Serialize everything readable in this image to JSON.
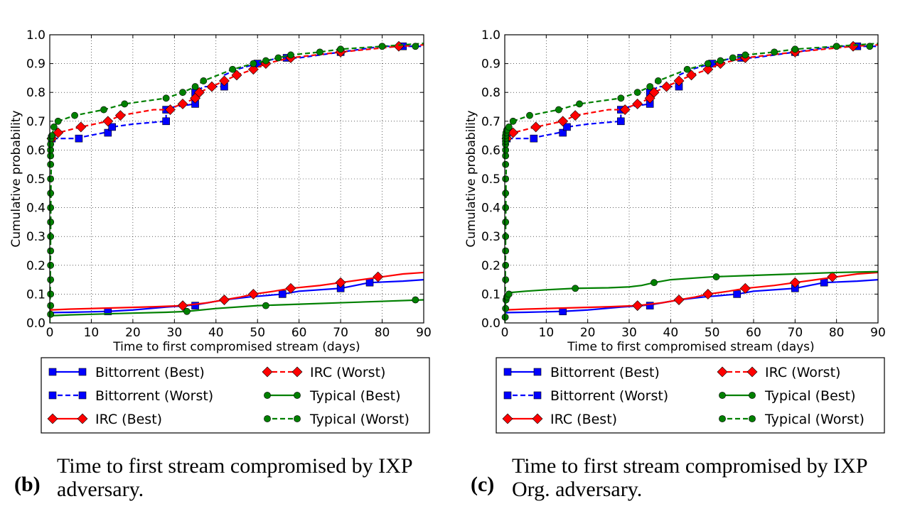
{
  "chart_data": [
    {
      "type": "line",
      "panel": "(b)",
      "caption": "Time to first stream compromised by IXP adversary.",
      "xlabel": "Time to first compromised stream (days)",
      "ylabel": "Cumulative probability",
      "xlim": [
        0,
        90
      ],
      "ylim": [
        0,
        1
      ],
      "xticks": [
        "0",
        "10",
        "20",
        "30",
        "40",
        "50",
        "60",
        "70",
        "80",
        "90"
      ],
      "yticks": [
        "0.0",
        "0.1",
        "0.2",
        "0.3",
        "0.4",
        "0.5",
        "0.6",
        "0.7",
        "0.8",
        "0.9",
        "1.0"
      ],
      "grid": true,
      "series": [
        {
          "name": "Bittorrent (Best)",
          "color": "#0000ff",
          "dash": false,
          "marker": "square",
          "x": [
            0,
            1,
            5,
            14,
            20,
            28,
            33,
            36,
            42,
            48,
            56,
            60,
            70,
            77,
            85,
            90
          ],
          "y": [
            0.035,
            0.036,
            0.037,
            0.04,
            0.045,
            0.055,
            0.06,
            0.065,
            0.08,
            0.09,
            0.1,
            0.11,
            0.12,
            0.14,
            0.145,
            0.15
          ],
          "markers_x": [
            14,
            35,
            56,
            70,
            77
          ],
          "markers_y": [
            0.04,
            0.06,
            0.1,
            0.12,
            0.14
          ]
        },
        {
          "name": "Bittorrent (Worst)",
          "color": "#0000ff",
          "dash": true,
          "marker": "square",
          "x": [
            0,
            0.3,
            1,
            6,
            13,
            15,
            20,
            28,
            28,
            30,
            35,
            35,
            37,
            42,
            42,
            45,
            50,
            55,
            60,
            70,
            80,
            90
          ],
          "y": [
            0.62,
            0.64,
            0.64,
            0.64,
            0.66,
            0.68,
            0.69,
            0.7,
            0.74,
            0.75,
            0.76,
            0.8,
            0.82,
            0.82,
            0.86,
            0.88,
            0.9,
            0.92,
            0.92,
            0.94,
            0.96,
            0.96
          ],
          "markers_x": [
            0.5,
            7,
            14,
            15,
            28,
            28,
            35,
            35,
            42,
            50,
            57,
            70,
            85
          ],
          "markers_y": [
            0.64,
            0.64,
            0.66,
            0.68,
            0.7,
            0.74,
            0.76,
            0.8,
            0.82,
            0.9,
            0.92,
            0.94,
            0.96
          ]
        },
        {
          "name": "IRC (Best)",
          "color": "#ff0000",
          "dash": false,
          "marker": "diamond",
          "x": [
            0,
            5,
            15,
            25,
            32,
            38,
            42,
            46,
            49,
            54,
            58,
            65,
            70,
            75,
            80,
            85,
            90
          ],
          "y": [
            0.045,
            0.048,
            0.052,
            0.056,
            0.06,
            0.07,
            0.08,
            0.09,
            0.1,
            0.11,
            0.12,
            0.13,
            0.14,
            0.15,
            0.16,
            0.17,
            0.175
          ],
          "markers_x": [
            32,
            42,
            49,
            58,
            70,
            79
          ],
          "markers_y": [
            0.06,
            0.08,
            0.1,
            0.12,
            0.14,
            0.16
          ]
        },
        {
          "name": "IRC (Worst)",
          "color": "#ff0000",
          "dash": true,
          "marker": "diamond",
          "x": [
            0,
            0.5,
            2,
            7.5,
            14,
            17,
            25,
            28,
            32,
            35,
            36,
            39,
            42,
            45,
            49,
            52,
            58,
            70,
            84,
            90
          ],
          "y": [
            0.63,
            0.65,
            0.66,
            0.68,
            0.7,
            0.72,
            0.74,
            0.74,
            0.76,
            0.78,
            0.8,
            0.82,
            0.84,
            0.86,
            0.88,
            0.9,
            0.92,
            0.94,
            0.96,
            0.965
          ],
          "markers_x": [
            0.5,
            2,
            7.5,
            14,
            17,
            29,
            32,
            35,
            36,
            39,
            42,
            45,
            49,
            52,
            58,
            70,
            84
          ],
          "markers_y": [
            0.64,
            0.66,
            0.68,
            0.7,
            0.72,
            0.74,
            0.76,
            0.78,
            0.8,
            0.82,
            0.84,
            0.86,
            0.88,
            0.9,
            0.92,
            0.94,
            0.96
          ]
        },
        {
          "name": "Typical (Best)",
          "color": "#008000",
          "dash": false,
          "marker": "circle",
          "x": [
            0,
            5,
            10,
            20,
            28,
            33,
            40,
            50,
            60,
            70,
            80,
            90
          ],
          "y": [
            0.025,
            0.028,
            0.03,
            0.034,
            0.037,
            0.04,
            0.05,
            0.06,
            0.065,
            0.07,
            0.075,
            0.08
          ],
          "markers_x": [
            33,
            52,
            88
          ],
          "markers_y": [
            0.04,
            0.06,
            0.08
          ]
        },
        {
          "name": "Typical (Worst)",
          "color": "#008000",
          "dash": true,
          "marker": "circle",
          "x": [
            0,
            0.1,
            0.2,
            0.3,
            0.5,
            1,
            2,
            6,
            13,
            18,
            28,
            32,
            35,
            37,
            44,
            49,
            52,
            55,
            58,
            65,
            70,
            80,
            90
          ],
          "y": [
            0.0,
            0.1,
            0.3,
            0.5,
            0.65,
            0.68,
            0.7,
            0.72,
            0.74,
            0.76,
            0.78,
            0.8,
            0.82,
            0.84,
            0.88,
            0.9,
            0.91,
            0.92,
            0.93,
            0.94,
            0.95,
            0.96,
            0.97
          ],
          "markers_x": [
            0.2,
            0.2,
            0.2,
            0.2,
            0.2,
            0.2,
            0.2,
            0.2,
            0.2,
            0.2,
            0.2,
            0.2,
            0.2,
            0.2,
            0.2,
            0.3,
            0.5,
            1,
            2,
            6,
            13,
            18,
            28,
            32,
            35,
            37,
            44,
            49,
            52,
            55,
            58,
            65,
            70,
            80,
            88
          ],
          "markers_y": [
            0.03,
            0.06,
            0.1,
            0.15,
            0.2,
            0.25,
            0.3,
            0.35,
            0.4,
            0.45,
            0.5,
            0.55,
            0.58,
            0.6,
            0.62,
            0.64,
            0.65,
            0.68,
            0.7,
            0.72,
            0.74,
            0.76,
            0.78,
            0.8,
            0.82,
            0.84,
            0.88,
            0.9,
            0.91,
            0.92,
            0.93,
            0.94,
            0.95,
            0.96,
            0.96
          ]
        }
      ]
    },
    {
      "type": "line",
      "panel": "(c)",
      "caption": "Time to first stream compromised by IXP Org. adversary.",
      "xlabel": "Time to first compromised stream (days)",
      "ylabel": "Cumulative probability",
      "xlim": [
        0,
        90
      ],
      "ylim": [
        0,
        1
      ],
      "xticks": [
        "0",
        "10",
        "20",
        "30",
        "40",
        "50",
        "60",
        "70",
        "80",
        "90"
      ],
      "yticks": [
        "0.0",
        "0.1",
        "0.2",
        "0.3",
        "0.4",
        "0.5",
        "0.6",
        "0.7",
        "0.8",
        "0.9",
        "1.0"
      ],
      "grid": true,
      "series": [
        {
          "name": "Bittorrent (Best)",
          "color": "#0000ff",
          "dash": false,
          "marker": "square",
          "x": [
            0,
            1,
            5,
            14,
            20,
            28,
            33,
            36,
            42,
            48,
            56,
            60,
            70,
            77,
            85,
            90
          ],
          "y": [
            0.035,
            0.036,
            0.037,
            0.04,
            0.045,
            0.055,
            0.06,
            0.065,
            0.08,
            0.09,
            0.1,
            0.11,
            0.12,
            0.14,
            0.145,
            0.15
          ],
          "markers_x": [
            14,
            35,
            56,
            70,
            77
          ],
          "markers_y": [
            0.04,
            0.06,
            0.1,
            0.12,
            0.14
          ]
        },
        {
          "name": "Bittorrent (Worst)",
          "color": "#0000ff",
          "dash": true,
          "marker": "square",
          "x": [
            0,
            0.3,
            1,
            6,
            13,
            15,
            20,
            28,
            28,
            30,
            35,
            35,
            37,
            42,
            42,
            45,
            50,
            55,
            60,
            70,
            80,
            90
          ],
          "y": [
            0.62,
            0.64,
            0.64,
            0.64,
            0.66,
            0.68,
            0.69,
            0.7,
            0.74,
            0.75,
            0.76,
            0.8,
            0.82,
            0.82,
            0.86,
            0.88,
            0.9,
            0.92,
            0.92,
            0.94,
            0.96,
            0.96
          ],
          "markers_x": [
            0.5,
            7,
            14,
            15,
            28,
            28,
            35,
            35,
            42,
            50,
            57,
            70,
            85
          ],
          "markers_y": [
            0.64,
            0.64,
            0.66,
            0.68,
            0.7,
            0.74,
            0.76,
            0.8,
            0.82,
            0.9,
            0.92,
            0.94,
            0.96
          ]
        },
        {
          "name": "IRC (Best)",
          "color": "#ff0000",
          "dash": false,
          "marker": "diamond",
          "x": [
            0,
            5,
            15,
            25,
            32,
            38,
            42,
            46,
            49,
            54,
            58,
            65,
            70,
            75,
            80,
            85,
            90
          ],
          "y": [
            0.045,
            0.048,
            0.052,
            0.056,
            0.06,
            0.07,
            0.08,
            0.09,
            0.1,
            0.11,
            0.12,
            0.13,
            0.14,
            0.15,
            0.16,
            0.17,
            0.175
          ],
          "markers_x": [
            32,
            42,
            49,
            58,
            70,
            79
          ],
          "markers_y": [
            0.06,
            0.08,
            0.1,
            0.12,
            0.14,
            0.16
          ]
        },
        {
          "name": "IRC (Worst)",
          "color": "#ff0000",
          "dash": true,
          "marker": "diamond",
          "x": [
            0,
            0.5,
            2,
            7.5,
            14,
            17,
            25,
            28,
            32,
            35,
            36,
            39,
            42,
            45,
            49,
            52,
            58,
            70,
            84,
            90
          ],
          "y": [
            0.63,
            0.65,
            0.66,
            0.68,
            0.7,
            0.72,
            0.74,
            0.74,
            0.76,
            0.78,
            0.8,
            0.82,
            0.84,
            0.86,
            0.88,
            0.9,
            0.92,
            0.94,
            0.96,
            0.965
          ],
          "markers_x": [
            0.5,
            2,
            7.5,
            14,
            17,
            29,
            32,
            35,
            36,
            39,
            42,
            45,
            49,
            52,
            58,
            70,
            84
          ],
          "markers_y": [
            0.64,
            0.66,
            0.68,
            0.7,
            0.72,
            0.74,
            0.76,
            0.78,
            0.8,
            0.82,
            0.84,
            0.86,
            0.88,
            0.9,
            0.92,
            0.94,
            0.96
          ]
        },
        {
          "name": "Typical (Best)",
          "color": "#008000",
          "dash": false,
          "marker": "circle",
          "x": [
            0,
            0.1,
            0.3,
            0.5,
            1,
            5,
            10,
            17,
            25,
            30,
            33,
            36,
            40,
            45,
            50,
            60,
            70,
            80,
            90
          ],
          "y": [
            0.0,
            0.05,
            0.09,
            0.1,
            0.105,
            0.11,
            0.115,
            0.12,
            0.122,
            0.125,
            0.13,
            0.14,
            0.15,
            0.155,
            0.16,
            0.165,
            0.17,
            0.175,
            0.178
          ],
          "markers_x": [
            0.1,
            0.2,
            0.3,
            0.5,
            1,
            17,
            36,
            51
          ],
          "markers_y": [
            0.02,
            0.05,
            0.08,
            0.09,
            0.1,
            0.12,
            0.14,
            0.16
          ]
        },
        {
          "name": "Typical (Worst)",
          "color": "#008000",
          "dash": true,
          "marker": "circle",
          "x": [
            0,
            0.1,
            0.2,
            0.3,
            0.5,
            1,
            2,
            6,
            13,
            18,
            28,
            32,
            35,
            37,
            44,
            49,
            52,
            55,
            58,
            65,
            70,
            80,
            90
          ],
          "y": [
            0.0,
            0.1,
            0.3,
            0.5,
            0.65,
            0.68,
            0.7,
            0.72,
            0.74,
            0.76,
            0.78,
            0.8,
            0.82,
            0.84,
            0.88,
            0.9,
            0.91,
            0.92,
            0.93,
            0.94,
            0.95,
            0.96,
            0.97
          ],
          "markers_x": [
            0.2,
            0.2,
            0.2,
            0.2,
            0.2,
            0.2,
            0.2,
            0.2,
            0.2,
            0.2,
            0.2,
            0.2,
            0.2,
            0.2,
            0.2,
            0.3,
            0.5,
            1,
            2,
            6,
            13,
            18,
            28,
            32,
            35,
            37,
            44,
            49,
            52,
            55,
            58,
            65,
            70,
            80,
            88
          ],
          "markers_y": [
            0.15,
            0.2,
            0.25,
            0.3,
            0.35,
            0.4,
            0.45,
            0.5,
            0.55,
            0.58,
            0.6,
            0.62,
            0.63,
            0.64,
            0.65,
            0.66,
            0.67,
            0.68,
            0.7,
            0.72,
            0.74,
            0.76,
            0.78,
            0.8,
            0.82,
            0.84,
            0.88,
            0.9,
            0.91,
            0.92,
            0.93,
            0.94,
            0.95,
            0.96,
            0.96
          ]
        }
      ]
    }
  ]
}
